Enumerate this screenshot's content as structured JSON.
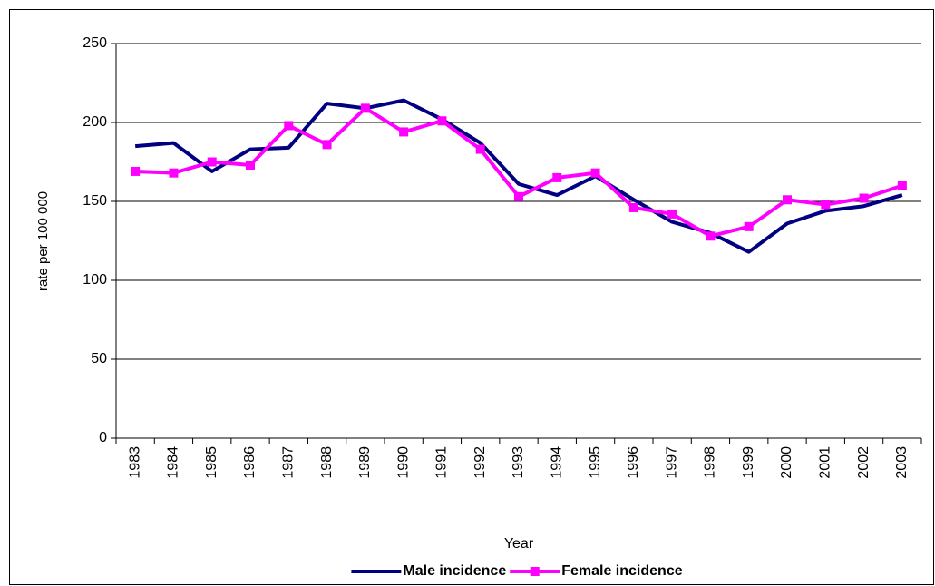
{
  "chart_data": {
    "type": "line",
    "y_label": "rate per 100 000",
    "x_label": "Year",
    "categories": [
      "1983",
      "1984",
      "1985",
      "1986",
      "1987",
      "1988",
      "1989",
      "1990",
      "1991",
      "1992",
      "1993",
      "1994",
      "1995",
      "1996",
      "1997",
      "1998",
      "1999",
      "2000",
      "2001",
      "2002",
      "2003"
    ],
    "series": [
      {
        "name": "Male incidence",
        "color": "#000080",
        "marker": "none",
        "values": [
          185,
          187,
          169,
          183,
          184,
          212,
          209,
          214,
          202,
          187,
          161,
          154,
          166,
          151,
          137,
          130,
          118,
          136,
          144,
          147,
          154
        ]
      },
      {
        "name": "Female incidence",
        "color": "#ff00ff",
        "marker": "square",
        "values": [
          169,
          168,
          175,
          173,
          198,
          186,
          209,
          194,
          201,
          183,
          153,
          165,
          168,
          146,
          142,
          128,
          134,
          151,
          148,
          152,
          160
        ]
      }
    ],
    "ylim": [
      0,
      250
    ],
    "yticks": [
      0,
      50,
      100,
      150,
      200,
      250
    ],
    "grid": true,
    "legend": "bottom"
  }
}
